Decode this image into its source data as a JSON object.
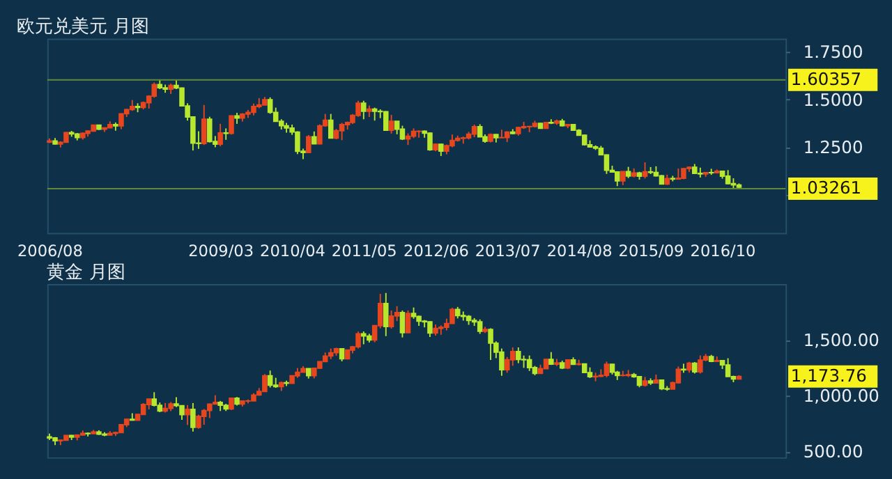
{
  "chart_data": [
    {
      "type": "candlestick",
      "title": "欧元兑美元 月图",
      "colors": [
        "#e8461e",
        "#b8e82e",
        "#e8461e",
        "#e8461e",
        "#b8e82e",
        "#b8e82e",
        "#e8461e",
        "#e8461e",
        "#e8461e",
        "#b8e82e",
        "#e8461e",
        "#e8461e",
        "#b8e82e",
        "#e8461e",
        "#e8461e",
        "#e8461e",
        "#b8e82e",
        "#e8461e",
        "#e8461e",
        "#e8461e",
        "#b8e82e",
        "#b8e82e",
        "#e8461e",
        "#b8e82e",
        "#b8e82e",
        "#b8e82e",
        "#b8e82e",
        "#b8e82e",
        "#e8461e",
        "#b8e82e",
        "#b8e82e",
        "#e8461e",
        "#b8e82e",
        "#e8461e",
        "#b8e82e",
        "#e8461e",
        "#e8461e",
        "#e8461e",
        "#e8461e",
        "#e8461e",
        "#b8e82e",
        "#b8e82e",
        "#b8e82e",
        "#b8e82e",
        "#b8e82e",
        "#b8e82e",
        "#b8e82e",
        "#e8461e",
        "#b8e82e",
        "#e8461e",
        "#e8461e",
        "#b8e82e",
        "#e8461e",
        "#e8461e",
        "#e8461e",
        "#e8461e",
        "#e8461e",
        "#b8e82e",
        "#e8461e",
        "#b8e82e",
        "#b8e82e",
        "#b8e82e",
        "#e8461e",
        "#b8e82e",
        "#b8e82e",
        "#e8461e",
        "#e8461e",
        "#e8461e",
        "#b8e82e",
        "#b8e82e",
        "#e8461e",
        "#b8e82e",
        "#e8461e",
        "#e8461e",
        "#e8461e",
        "#e8461e",
        "#e8461e",
        "#e8461e",
        "#b8e82e",
        "#b8e82e",
        "#e8461e",
        "#b8e82e",
        "#e8461e",
        "#e8461e",
        "#b8e82e",
        "#e8461e",
        "#e8461e",
        "#e8461e",
        "#e8461e",
        "#b8e82e",
        "#e8461e",
        "#b8e82e",
        "#e8461e",
        "#b8e82e",
        "#e8461e",
        "#b8e82e",
        "#b8e82e",
        "#b8e82e",
        "#b8e82e",
        "#b8e82e",
        "#b8e82e",
        "#b8e82e",
        "#b8e82e",
        "#b8e82e",
        "#e8461e",
        "#b8e82e",
        "#e8461e",
        "#b8e82e",
        "#e8461e",
        "#b8e82e",
        "#b8e82e",
        "#b8e82e",
        "#e8461e",
        "#b8e82e",
        "#e8461e",
        "#e8461e",
        "#e8461e",
        "#b8e82e",
        "#b8e82e",
        "#e8461e",
        "#b8e82e",
        "#e8461e",
        "#b8e82e",
        "#b8e82e",
        "#b8e82e",
        "#b8e82e"
      ],
      "x": [
        "2006-08",
        "2006-09",
        "2006-10",
        "2006-11",
        "2006-12",
        "2007-01",
        "2007-02",
        "2007-03",
        "2007-04",
        "2007-05",
        "2007-06",
        "2007-07",
        "2007-08",
        "2007-09",
        "2007-10",
        "2007-11",
        "2007-12",
        "2008-01",
        "2008-02",
        "2008-03",
        "2008-04",
        "2008-05",
        "2008-06",
        "2008-07",
        "2008-08",
        "2008-09",
        "2008-10",
        "2008-11",
        "2008-12",
        "2009-01",
        "2009-02",
        "2009-03",
        "2009-04",
        "2009-05",
        "2009-06",
        "2009-07",
        "2009-08",
        "2009-09",
        "2009-10",
        "2009-11",
        "2009-12",
        "2010-01",
        "2010-02",
        "2010-03",
        "2010-04",
        "2010-05",
        "2010-06",
        "2010-07",
        "2010-08",
        "2010-09",
        "2010-10",
        "2010-11",
        "2010-12",
        "2011-01",
        "2011-02",
        "2011-03",
        "2011-04",
        "2011-05",
        "2011-06",
        "2011-07",
        "2011-08",
        "2011-09",
        "2011-10",
        "2011-11",
        "2011-12",
        "2012-01",
        "2012-02",
        "2012-03",
        "2012-04",
        "2012-05",
        "2012-06",
        "2012-07",
        "2012-08",
        "2012-09",
        "2012-10",
        "2012-11",
        "2012-12",
        "2013-01",
        "2013-02",
        "2013-03",
        "2013-04",
        "2013-05",
        "2013-06",
        "2013-07",
        "2013-08",
        "2013-09",
        "2013-10",
        "2013-11",
        "2013-12",
        "2014-01",
        "2014-02",
        "2014-03",
        "2014-04",
        "2014-05",
        "2014-06",
        "2014-07",
        "2014-08",
        "2014-09",
        "2014-10",
        "2014-11",
        "2014-12",
        "2015-01",
        "2015-02",
        "2015-03",
        "2015-04",
        "2015-05",
        "2015-06",
        "2015-07",
        "2015-08",
        "2015-09",
        "2015-10",
        "2015-11",
        "2015-12",
        "2016-01",
        "2016-02",
        "2016-03",
        "2016-04",
        "2016-05",
        "2016-06",
        "2016-07",
        "2016-08",
        "2016-09",
        "2016-10",
        "2016-11",
        "2016-12",
        "2017-01"
      ],
      "ohlc": [
        [
          1.277,
          1.297,
          1.272,
          1.283
        ],
        [
          1.283,
          1.298,
          1.264,
          1.267
        ],
        [
          1.267,
          1.281,
          1.249,
          1.276
        ],
        [
          1.276,
          1.33,
          1.274,
          1.327
        ],
        [
          1.327,
          1.336,
          1.305,
          1.32
        ],
        [
          1.32,
          1.325,
          1.286,
          1.301
        ],
        [
          1.301,
          1.328,
          1.29,
          1.323
        ],
        [
          1.323,
          1.339,
          1.306,
          1.335
        ],
        [
          1.335,
          1.368,
          1.333,
          1.366
        ],
        [
          1.366,
          1.368,
          1.34,
          1.345
        ],
        [
          1.345,
          1.354,
          1.33,
          1.352
        ],
        [
          1.352,
          1.386,
          1.352,
          1.369
        ],
        [
          1.369,
          1.38,
          1.337,
          1.362
        ],
        [
          1.362,
          1.427,
          1.345,
          1.426
        ],
        [
          1.426,
          1.452,
          1.409,
          1.448
        ],
        [
          1.448,
          1.498,
          1.441,
          1.464
        ],
        [
          1.464,
          1.481,
          1.434,
          1.459
        ],
        [
          1.459,
          1.49,
          1.449,
          1.484
        ],
        [
          1.484,
          1.523,
          1.453,
          1.518
        ],
        [
          1.518,
          1.59,
          1.51,
          1.579
        ],
        [
          1.579,
          1.603,
          1.555,
          1.562
        ],
        [
          1.562,
          1.579,
          1.536,
          1.555
        ],
        [
          1.555,
          1.584,
          1.53,
          1.575
        ],
        [
          1.575,
          1.604,
          1.555,
          1.561
        ],
        [
          1.561,
          1.563,
          1.466,
          1.467
        ],
        [
          1.467,
          1.481,
          1.39,
          1.409
        ],
        [
          1.409,
          1.412,
          1.233,
          1.272
        ],
        [
          1.272,
          1.334,
          1.242,
          1.27
        ],
        [
          1.27,
          1.472,
          1.262,
          1.397
        ],
        [
          1.397,
          1.41,
          1.275,
          1.28
        ],
        [
          1.28,
          1.309,
          1.25,
          1.266
        ],
        [
          1.266,
          1.373,
          1.255,
          1.325
        ],
        [
          1.325,
          1.349,
          1.289,
          1.323
        ],
        [
          1.323,
          1.417,
          1.317,
          1.415
        ],
        [
          1.415,
          1.431,
          1.373,
          1.403
        ],
        [
          1.403,
          1.429,
          1.385,
          1.424
        ],
        [
          1.424,
          1.446,
          1.404,
          1.433
        ],
        [
          1.433,
          1.479,
          1.417,
          1.464
        ],
        [
          1.464,
          1.508,
          1.455,
          1.472
        ],
        [
          1.472,
          1.514,
          1.471,
          1.5
        ],
        [
          1.5,
          1.512,
          1.426,
          1.433
        ],
        [
          1.433,
          1.458,
          1.385,
          1.386
        ],
        [
          1.386,
          1.397,
          1.343,
          1.363
        ],
        [
          1.363,
          1.378,
          1.327,
          1.351
        ],
        [
          1.351,
          1.369,
          1.315,
          1.33
        ],
        [
          1.33,
          1.334,
          1.214,
          1.229
        ],
        [
          1.229,
          1.243,
          1.188,
          1.222
        ],
        [
          1.222,
          1.314,
          1.219,
          1.305
        ],
        [
          1.305,
          1.333,
          1.266,
          1.268
        ],
        [
          1.268,
          1.37,
          1.265,
          1.363
        ],
        [
          1.363,
          1.425,
          1.358,
          1.392
        ],
        [
          1.392,
          1.425,
          1.297,
          1.298
        ],
        [
          1.298,
          1.346,
          1.292,
          1.337
        ],
        [
          1.337,
          1.378,
          1.287,
          1.369
        ],
        [
          1.369,
          1.385,
          1.343,
          1.38
        ],
        [
          1.38,
          1.424,
          1.372,
          1.417
        ],
        [
          1.417,
          1.494,
          1.41,
          1.481
        ],
        [
          1.481,
          1.494,
          1.397,
          1.439
        ],
        [
          1.439,
          1.469,
          1.409,
          1.45
        ],
        [
          1.45,
          1.458,
          1.39,
          1.439
        ],
        [
          1.439,
          1.449,
          1.403,
          1.437
        ],
        [
          1.437,
          1.44,
          1.336,
          1.339
        ],
        [
          1.339,
          1.42,
          1.322,
          1.386
        ],
        [
          1.386,
          1.387,
          1.318,
          1.345
        ],
        [
          1.345,
          1.363,
          1.288,
          1.294
        ],
        [
          1.294,
          1.323,
          1.262,
          1.308
        ],
        [
          1.308,
          1.349,
          1.298,
          1.333
        ],
        [
          1.333,
          1.339,
          1.3,
          1.334
        ],
        [
          1.334,
          1.338,
          1.3,
          1.324
        ],
        [
          1.324,
          1.328,
          1.232,
          1.237
        ],
        [
          1.237,
          1.269,
          1.229,
          1.266
        ],
        [
          1.266,
          1.268,
          1.204,
          1.23
        ],
        [
          1.23,
          1.264,
          1.213,
          1.258
        ],
        [
          1.258,
          1.317,
          1.25,
          1.286
        ],
        [
          1.286,
          1.311,
          1.28,
          1.297
        ],
        [
          1.297,
          1.306,
          1.269,
          1.299
        ],
        [
          1.299,
          1.331,
          1.291,
          1.319
        ],
        [
          1.319,
          1.369,
          1.303,
          1.358
        ],
        [
          1.358,
          1.371,
          1.303,
          1.305
        ],
        [
          1.305,
          1.318,
          1.274,
          1.282
        ],
        [
          1.282,
          1.322,
          1.276,
          1.317
        ],
        [
          1.317,
          1.318,
          1.275,
          1.3
        ],
        [
          1.3,
          1.342,
          1.299,
          1.301
        ],
        [
          1.301,
          1.334,
          1.277,
          1.33
        ],
        [
          1.33,
          1.345,
          1.318,
          1.322
        ],
        [
          1.322,
          1.358,
          1.311,
          1.353
        ],
        [
          1.353,
          1.383,
          1.346,
          1.358
        ],
        [
          1.358,
          1.362,
          1.329,
          1.359
        ],
        [
          1.359,
          1.389,
          1.354,
          1.375
        ],
        [
          1.375,
          1.378,
          1.347,
          1.349
        ],
        [
          1.349,
          1.382,
          1.347,
          1.38
        ],
        [
          1.38,
          1.397,
          1.372,
          1.377
        ],
        [
          1.377,
          1.395,
          1.368,
          1.387
        ],
        [
          1.387,
          1.399,
          1.359,
          1.363
        ],
        [
          1.363,
          1.37,
          1.35,
          1.369
        ],
        [
          1.369,
          1.37,
          1.338,
          1.339
        ],
        [
          1.339,
          1.345,
          1.312,
          1.313
        ],
        [
          1.313,
          1.316,
          1.259,
          1.263
        ],
        [
          1.263,
          1.286,
          1.25,
          1.252
        ],
        [
          1.252,
          1.26,
          1.236,
          1.245
        ],
        [
          1.245,
          1.257,
          1.21,
          1.21
        ],
        [
          1.21,
          1.212,
          1.11,
          1.129
        ],
        [
          1.129,
          1.153,
          1.119,
          1.12
        ],
        [
          1.12,
          1.124,
          1.046,
          1.073
        ],
        [
          1.073,
          1.122,
          1.051,
          1.122
        ],
        [
          1.122,
          1.147,
          1.088,
          1.099
        ],
        [
          1.099,
          1.139,
          1.092,
          1.115
        ],
        [
          1.115,
          1.121,
          1.08,
          1.098
        ],
        [
          1.098,
          1.171,
          1.086,
          1.121
        ],
        [
          1.121,
          1.146,
          1.109,
          1.118
        ],
        [
          1.118,
          1.15,
          1.096,
          1.1
        ],
        [
          1.1,
          1.104,
          1.057,
          1.057
        ],
        [
          1.057,
          1.106,
          1.052,
          1.086
        ],
        [
          1.086,
          1.1,
          1.071,
          1.083
        ],
        [
          1.083,
          1.138,
          1.082,
          1.087
        ],
        [
          1.087,
          1.139,
          1.082,
          1.138
        ],
        [
          1.138,
          1.149,
          1.121,
          1.145
        ],
        [
          1.145,
          1.162,
          1.11,
          1.113
        ],
        [
          1.113,
          1.143,
          1.091,
          1.11
        ],
        [
          1.11,
          1.119,
          1.095,
          1.117
        ],
        [
          1.117,
          1.137,
          1.105,
          1.116
        ],
        [
          1.116,
          1.133,
          1.112,
          1.124
        ],
        [
          1.124,
          1.126,
          1.085,
          1.098
        ],
        [
          1.098,
          1.13,
          1.055,
          1.059
        ],
        [
          1.059,
          1.087,
          1.035,
          1.052
        ],
        [
          1.052,
          1.06,
          1.034,
          1.04
        ]
      ],
      "xlim": [
        "2006-07-20",
        "2017-09-15"
      ],
      "xticks": [
        {
          "value": "2006-08",
          "label": "2006/08"
        },
        {
          "value": "2009-03",
          "label": "2009/03"
        },
        {
          "value": "2010-04",
          "label": "2010/04"
        },
        {
          "value": "2011-05",
          "label": "2011/05"
        },
        {
          "value": "2012-06",
          "label": "2012/06"
        },
        {
          "value": "2013-07",
          "label": "2013/07"
        },
        {
          "value": "2014-08",
          "label": "2014/08"
        },
        {
          "value": "2015-09",
          "label": "2015/09"
        },
        {
          "value": "2016-10",
          "label": "2016/10"
        }
      ],
      "ylim": [
        0.8,
        1.82
      ],
      "yticks": [
        {
          "value": 1.0,
          "label": null
        },
        {
          "value": 1.25,
          "label": "1.2500"
        },
        {
          "value": 1.5,
          "label": "1.5000"
        },
        {
          "value": 1.75,
          "label": "1.7500"
        }
      ],
      "ref_lines": [
        {
          "axis": "y",
          "value": 1.60357,
          "label": "1.60357",
          "color": "#5f8a3a"
        },
        {
          "axis": "y",
          "value": 1.03261,
          "label": "1.03261",
          "color": "#5f8a3a"
        }
      ],
      "grid": false,
      "legend": false
    },
    {
      "type": "candlestick",
      "title": "黄金 月图",
      "colors": [
        "#b8e82e",
        "#b8e82e",
        "#e8461e",
        "#e8461e",
        "#b8e82e",
        "#e8461e",
        "#e8461e",
        "#b8e82e",
        "#e8461e",
        "#b8e82e",
        "#b8e82e",
        "#e8461e",
        "#e8461e",
        "#e8461e",
        "#e8461e",
        "#b8e82e",
        "#e8461e",
        "#e8461e",
        "#e8461e",
        "#b8e82e",
        "#b8e82e",
        "#e8461e",
        "#e8461e",
        "#b8e82e",
        "#b8e82e",
        "#e8461e",
        "#b8e82e",
        "#e8461e",
        "#e8461e",
        "#e8461e",
        "#e8461e",
        "#b8e82e",
        "#b8e82e",
        "#e8461e",
        "#b8e82e",
        "#e8461e",
        "#e8461e",
        "#e8461e",
        "#e8461e",
        "#e8461e",
        "#b8e82e",
        "#b8e82e",
        "#e8461e",
        "#b8e82e",
        "#e8461e",
        "#e8461e",
        "#e8461e",
        "#b8e82e",
        "#e8461e",
        "#e8461e",
        "#e8461e",
        "#e8461e",
        "#e8461e",
        "#b8e82e",
        "#e8461e",
        "#e8461e",
        "#e8461e",
        "#b8e82e",
        "#b8e82e",
        "#e8461e",
        "#e8461e",
        "#b8e82e",
        "#e8461e",
        "#e8461e",
        "#b8e82e",
        "#e8461e",
        "#b8e82e",
        "#b8e82e",
        "#b8e82e",
        "#b8e82e",
        "#e8461e",
        "#e8461e",
        "#e8461e",
        "#e8461e",
        "#b8e82e",
        "#b8e82e",
        "#b8e82e",
        "#b8e82e",
        "#b8e82e",
        "#e8461e",
        "#b8e82e",
        "#b8e82e",
        "#b8e82e",
        "#e8461e",
        "#e8461e",
        "#b8e82e",
        "#b8e82e",
        "#b8e82e",
        "#b8e82e",
        "#e8461e",
        "#e8461e",
        "#b8e82e",
        "#e8461e",
        "#b8e82e",
        "#e8461e",
        "#b8e82e",
        "#e8461e",
        "#b8e82e",
        "#b8e82e",
        "#e8461e",
        "#e8461e",
        "#e8461e",
        "#b8e82e",
        "#b8e82e",
        "#e8461e",
        "#e8461e",
        "#b8e82e",
        "#b8e82e",
        "#e8461e",
        "#b8e82e",
        "#e8461e",
        "#b8e82e",
        "#b8e82e",
        "#e8461e",
        "#e8461e",
        "#b8e82e",
        "#e8461e",
        "#b8e82e",
        "#e8461e",
        "#e8461e",
        "#b8e82e",
        "#e8461e",
        "#b8e82e",
        "#b8e82e",
        "#b8e82e",
        "#e8461e"
      ],
      "x": [
        "2006-08",
        "2006-09",
        "2006-10",
        "2006-11",
        "2006-12",
        "2007-01",
        "2007-02",
        "2007-03",
        "2007-04",
        "2007-05",
        "2007-06",
        "2007-07",
        "2007-08",
        "2007-09",
        "2007-10",
        "2007-11",
        "2007-12",
        "2008-01",
        "2008-02",
        "2008-03",
        "2008-04",
        "2008-05",
        "2008-06",
        "2008-07",
        "2008-08",
        "2008-09",
        "2008-10",
        "2008-11",
        "2008-12",
        "2009-01",
        "2009-02",
        "2009-03",
        "2009-04",
        "2009-05",
        "2009-06",
        "2009-07",
        "2009-08",
        "2009-09",
        "2009-10",
        "2009-11",
        "2009-12",
        "2010-01",
        "2010-02",
        "2010-03",
        "2010-04",
        "2010-05",
        "2010-06",
        "2010-07",
        "2010-08",
        "2010-09",
        "2010-10",
        "2010-11",
        "2010-12",
        "2011-01",
        "2011-02",
        "2011-03",
        "2011-04",
        "2011-05",
        "2011-06",
        "2011-07",
        "2011-08",
        "2011-09",
        "2011-10",
        "2011-11",
        "2011-12",
        "2012-01",
        "2012-02",
        "2012-03",
        "2012-04",
        "2012-05",
        "2012-06",
        "2012-07",
        "2012-08",
        "2012-09",
        "2012-10",
        "2012-11",
        "2012-12",
        "2013-01",
        "2013-02",
        "2013-03",
        "2013-04",
        "2013-05",
        "2013-06",
        "2013-07",
        "2013-08",
        "2013-09",
        "2013-10",
        "2013-11",
        "2013-12",
        "2014-01",
        "2014-02",
        "2014-03",
        "2014-04",
        "2014-05",
        "2014-06",
        "2014-07",
        "2014-08",
        "2014-09",
        "2014-10",
        "2014-11",
        "2014-12",
        "2015-01",
        "2015-02",
        "2015-03",
        "2015-04",
        "2015-05",
        "2015-06",
        "2015-07",
        "2015-08",
        "2015-09",
        "2015-10",
        "2015-11",
        "2015-12",
        "2016-01",
        "2016-02",
        "2016-03",
        "2016-04",
        "2016-05",
        "2016-06",
        "2016-07",
        "2016-08",
        "2016-09",
        "2016-10",
        "2016-11",
        "2016-12",
        "2017-01"
      ],
      "ohlc": [
        [
          634,
          663,
          606,
          624
        ],
        [
          624,
          632,
          560,
          599
        ],
        [
          599,
          608,
          560,
          604
        ],
        [
          604,
          649,
          602,
          646
        ],
        [
          646,
          650,
          605,
          632
        ],
        [
          632,
          656,
          602,
          650
        ],
        [
          650,
          690,
          648,
          665
        ],
        [
          665,
          673,
          637,
          662
        ],
        [
          662,
          695,
          660,
          678
        ],
        [
          678,
          692,
          651,
          658
        ],
        [
          658,
          676,
          639,
          650
        ],
        [
          650,
          685,
          647,
          665
        ],
        [
          665,
          679,
          642,
          672
        ],
        [
          672,
          745,
          670,
          742
        ],
        [
          742,
          796,
          721,
          791
        ],
        [
          791,
          845,
          780,
          783
        ],
        [
          783,
          839,
          781,
          834
        ],
        [
          834,
          935,
          834,
          923
        ],
        [
          923,
          976,
          880,
          972
        ],
        [
          972,
          1033,
          906,
          916
        ],
        [
          916,
          941,
          854,
          865
        ],
        [
          865,
          936,
          851,
          888
        ],
        [
          888,
          945,
          864,
          928
        ],
        [
          928,
          988,
          900,
          913
        ],
        [
          913,
          916,
          786,
          833
        ],
        [
          833,
          918,
          740,
          880
        ],
        [
          880,
          936,
          681,
          718
        ],
        [
          718,
          831,
          706,
          817
        ],
        [
          817,
          882,
          742,
          869
        ],
        [
          869,
          932,
          802,
          927
        ],
        [
          927,
          1006,
          926,
          942
        ],
        [
          942,
          955,
          865,
          916
        ],
        [
          916,
          929,
          865,
          883
        ],
        [
          883,
          981,
          873,
          980
        ],
        [
          980,
          990,
          914,
          927
        ],
        [
          927,
          960,
          905,
          954
        ],
        [
          954,
          968,
          933,
          955
        ],
        [
          955,
          1024,
          954,
          1008
        ],
        [
          1008,
          1070,
          1002,
          1040
        ],
        [
          1040,
          1195,
          1035,
          1181
        ],
        [
          1181,
          1227,
          1075,
          1096
        ],
        [
          1096,
          1162,
          1072,
          1083
        ],
        [
          1083,
          1128,
          1044,
          1118
        ],
        [
          1118,
          1136,
          1088,
          1113
        ],
        [
          1113,
          1183,
          1113,
          1180
        ],
        [
          1180,
          1249,
          1162,
          1212
        ],
        [
          1212,
          1265,
          1210,
          1244
        ],
        [
          1244,
          1244,
          1155,
          1181
        ],
        [
          1181,
          1250,
          1157,
          1248
        ],
        [
          1248,
          1310,
          1242,
          1307
        ],
        [
          1307,
          1388,
          1306,
          1357
        ],
        [
          1357,
          1424,
          1329,
          1386
        ],
        [
          1386,
          1431,
          1360,
          1421
        ],
        [
          1421,
          1424,
          1309,
          1332
        ],
        [
          1332,
          1411,
          1326,
          1410
        ],
        [
          1410,
          1447,
          1381,
          1439
        ],
        [
          1439,
          1576,
          1424,
          1556
        ],
        [
          1556,
          1577,
          1462,
          1536
        ],
        [
          1536,
          1556,
          1478,
          1500
        ],
        [
          1500,
          1632,
          1480,
          1628
        ],
        [
          1628,
          1913,
          1604,
          1826
        ],
        [
          1826,
          1921,
          1535,
          1620
        ],
        [
          1620,
          1764,
          1602,
          1715
        ],
        [
          1715,
          1803,
          1670,
          1746
        ],
        [
          1746,
          1764,
          1523,
          1566
        ],
        [
          1566,
          1764,
          1563,
          1738
        ],
        [
          1738,
          1791,
          1690,
          1711
        ],
        [
          1711,
          1718,
          1627,
          1669
        ],
        [
          1669,
          1679,
          1613,
          1663
        ],
        [
          1663,
          1667,
          1527,
          1562
        ],
        [
          1562,
          1640,
          1540,
          1604
        ],
        [
          1604,
          1631,
          1547,
          1614
        ],
        [
          1614,
          1691,
          1586,
          1648
        ],
        [
          1648,
          1788,
          1646,
          1773
        ],
        [
          1773,
          1796,
          1693,
          1719
        ],
        [
          1719,
          1755,
          1674,
          1711
        ],
        [
          1711,
          1723,
          1636,
          1675
        ],
        [
          1675,
          1696,
          1626,
          1663
        ],
        [
          1663,
          1684,
          1555,
          1578
        ],
        [
          1578,
          1617,
          1563,
          1595
        ],
        [
          1595,
          1605,
          1321,
          1472
        ],
        [
          1472,
          1488,
          1338,
          1392
        ],
        [
          1392,
          1424,
          1180,
          1234
        ],
        [
          1234,
          1348,
          1208,
          1323
        ],
        [
          1323,
          1434,
          1270,
          1396
        ],
        [
          1396,
          1434,
          1293,
          1326
        ],
        [
          1326,
          1361,
          1251,
          1323
        ],
        [
          1323,
          1361,
          1223,
          1253
        ],
        [
          1253,
          1268,
          1185,
          1202
        ],
        [
          1202,
          1280,
          1202,
          1244
        ],
        [
          1244,
          1332,
          1240,
          1326
        ],
        [
          1326,
          1392,
          1277,
          1284
        ],
        [
          1284,
          1331,
          1268,
          1295
        ],
        [
          1295,
          1315,
          1240,
          1250
        ],
        [
          1250,
          1326,
          1240,
          1322
        ],
        [
          1322,
          1345,
          1280,
          1282
        ],
        [
          1282,
          1323,
          1272,
          1286
        ],
        [
          1286,
          1290,
          1206,
          1209
        ],
        [
          1209,
          1255,
          1160,
          1171
        ],
        [
          1171,
          1208,
          1131,
          1175
        ],
        [
          1175,
          1238,
          1170,
          1184
        ],
        [
          1184,
          1307,
          1167,
          1283
        ],
        [
          1283,
          1286,
          1191,
          1212
        ],
        [
          1212,
          1224,
          1142,
          1183
        ],
        [
          1183,
          1224,
          1175,
          1184
        ],
        [
          1183,
          1232,
          1169,
          1190
        ],
        [
          1190,
          1205,
          1162,
          1172
        ],
        [
          1172,
          1175,
          1077,
          1095
        ],
        [
          1095,
          1170,
          1084,
          1133
        ],
        [
          1133,
          1157,
          1098,
          1115
        ],
        [
          1115,
          1191,
          1112,
          1142
        ],
        [
          1142,
          1142,
          1052,
          1064
        ],
        [
          1064,
          1088,
          1046,
          1061
        ],
        [
          1061,
          1128,
          1061,
          1118
        ],
        [
          1118,
          1263,
          1110,
          1238
        ],
        [
          1238,
          1288,
          1207,
          1233
        ],
        [
          1233,
          1304,
          1208,
          1293
        ],
        [
          1293,
          1303,
          1200,
          1215
        ],
        [
          1215,
          1362,
          1200,
          1321
        ],
        [
          1321,
          1375,
          1310,
          1351
        ],
        [
          1351,
          1367,
          1302,
          1309
        ],
        [
          1309,
          1353,
          1302,
          1316
        ],
        [
          1316,
          1318,
          1241,
          1277
        ],
        [
          1277,
          1337,
          1171,
          1173
        ],
        [
          1173,
          1181,
          1122,
          1151
        ],
        [
          1151,
          1185,
          1146,
          1173.76
        ]
      ],
      "xlim": [
        "2006-07-20",
        "2017-09-15"
      ],
      "ylim": [
        450,
        2000
      ],
      "yticks": [
        {
          "value": 500,
          "label": "500.00"
        },
        {
          "value": 1000,
          "label": "1,000.00"
        },
        {
          "value": 1500,
          "label": "1,500.00"
        }
      ],
      "annotations": [
        "1,173.76"
      ],
      "tick_labels": "y",
      "grid": false,
      "legend": false
    }
  ]
}
